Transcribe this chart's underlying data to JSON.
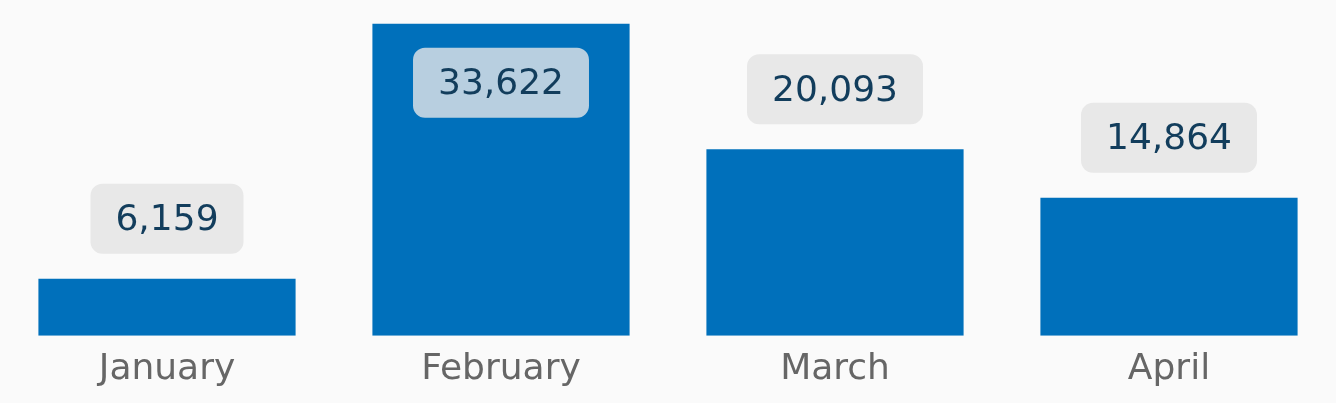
{
  "chart_data": {
    "type": "bar",
    "categories": [
      "January",
      "February",
      "March",
      "April"
    ],
    "values": [
      6159,
      33622,
      20093,
      14864
    ],
    "color": "#0070bb",
    "value_labels": [
      "6,159",
      "33,622",
      "20,093",
      "14,864"
    ],
    "grid": false,
    "legend": false
  }
}
